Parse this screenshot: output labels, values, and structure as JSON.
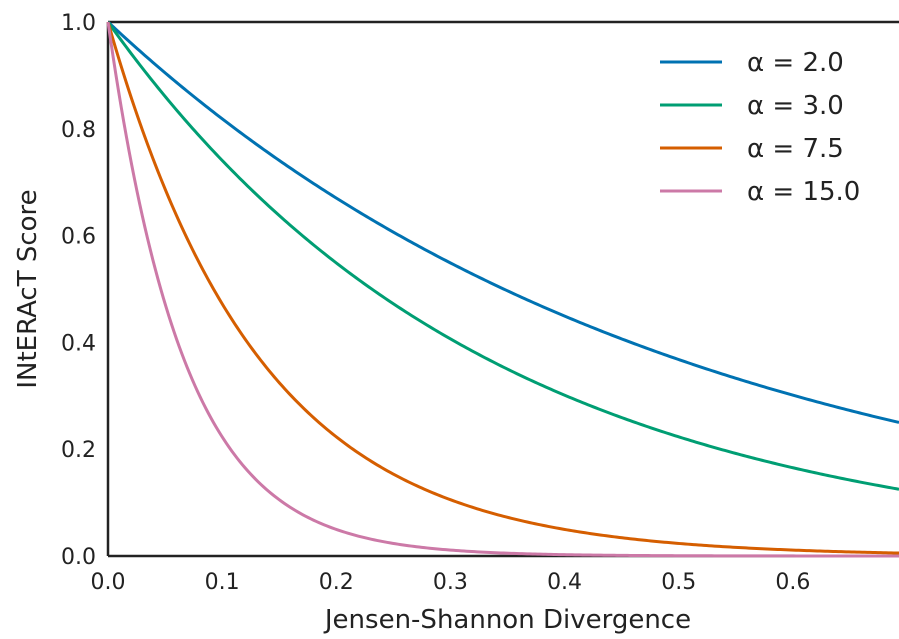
{
  "chart_data": {
    "type": "line",
    "title": "",
    "xlabel": "Jensen-Shannon Divergence",
    "ylabel": "INtERAcT Score",
    "xlim": [
      0,
      0.693
    ],
    "ylim": [
      0,
      1.0
    ],
    "x_ticks": [
      "0.0",
      "0.1",
      "0.2",
      "0.3",
      "0.4",
      "0.5",
      "0.6"
    ],
    "y_ticks": [
      "0.0",
      "0.2",
      "0.4",
      "0.6",
      "0.8",
      "1.0"
    ],
    "grid": false,
    "legend_position": "top-right",
    "formula": "y = exp(-alpha * x)",
    "series": [
      {
        "name": "α = 2.0",
        "alpha": 2.0,
        "color": "#0072b2"
      },
      {
        "name": "α = 3.0",
        "alpha": 3.0,
        "color": "#009e73"
      },
      {
        "name": "α = 7.5",
        "alpha": 7.5,
        "color": "#d55e00"
      },
      {
        "name": "α = 15.0",
        "alpha": 15.0,
        "color": "#cc79a7"
      }
    ]
  }
}
